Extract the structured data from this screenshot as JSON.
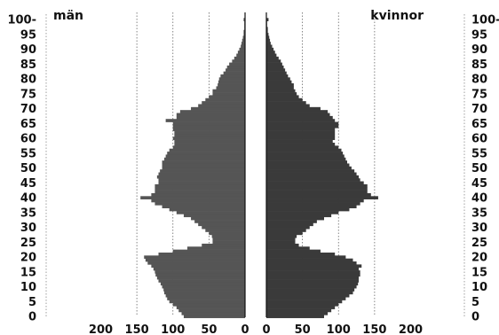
{
  "chart_data": {
    "type": "bar",
    "orientation": "horizontal",
    "layout": "population-pyramid",
    "title": "",
    "xlabel": "",
    "ylabel": "",
    "age_ticks": [
      "0",
      "5",
      "10",
      "15",
      "20",
      "25",
      "30",
      "35",
      "40",
      "45",
      "50",
      "55",
      "60",
      "65",
      "70",
      "75",
      "80",
      "85",
      "90",
      "95",
      "100-"
    ],
    "x_ticks_left": [
      "200",
      "150",
      "100",
      "50",
      "0"
    ],
    "x_ticks_right": [
      "0",
      "50",
      "100",
      "150",
      "200"
    ],
    "xlim": [
      0,
      200
    ],
    "age_range": [
      0,
      100
    ],
    "gridlines": [
      50,
      100,
      150
    ],
    "series": [
      {
        "name": "män",
        "side": "left",
        "color": "#555555",
        "values": [
          85,
          88,
          92,
          95,
          100,
          105,
          108,
          110,
          112,
          113,
          115,
          117,
          120,
          122,
          124,
          125,
          127,
          130,
          135,
          138,
          140,
          120,
          100,
          80,
          60,
          45,
          45,
          46,
          50,
          55,
          60,
          65,
          70,
          75,
          85,
          95,
          105,
          115,
          125,
          130,
          145,
          130,
          125,
          125,
          125,
          120,
          120,
          122,
          120,
          118,
          115,
          115,
          115,
          112,
          110,
          108,
          105,
          100,
          98,
          98,
          100,
          98,
          98,
          100,
          100,
          100,
          110,
          95,
          95,
          90,
          75,
          65,
          60,
          55,
          50,
          45,
          45,
          40,
          38,
          37,
          36,
          34,
          30,
          27,
          25,
          22,
          18,
          15,
          12,
          10,
          8,
          6,
          5,
          4,
          3,
          2,
          2,
          1,
          1,
          1,
          2
        ]
      },
      {
        "name": "kvinnor",
        "side": "right",
        "color": "#3a3a3a",
        "values": [
          80,
          85,
          90,
          95,
          100,
          105,
          110,
          115,
          120,
          122,
          125,
          127,
          128,
          128,
          130,
          130,
          128,
          132,
          125,
          120,
          110,
          95,
          75,
          60,
          45,
          40,
          40,
          42,
          50,
          55,
          60,
          65,
          70,
          80,
          90,
          100,
          115,
          125,
          130,
          135,
          155,
          145,
          140,
          140,
          140,
          135,
          130,
          128,
          125,
          122,
          118,
          115,
          112,
          110,
          108,
          106,
          104,
          100,
          95,
          92,
          95,
          95,
          95,
          95,
          100,
          100,
          95,
          92,
          88,
          85,
          75,
          60,
          55,
          50,
          45,
          42,
          40,
          38,
          38,
          35,
          33,
          30,
          28,
          26,
          24,
          22,
          20,
          17,
          14,
          12,
          10,
          8,
          6,
          5,
          4,
          3,
          2,
          2,
          1,
          1,
          3
        ]
      }
    ]
  }
}
